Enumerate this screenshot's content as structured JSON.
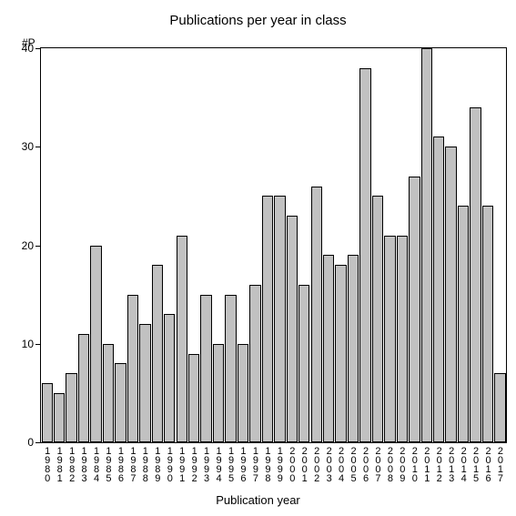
{
  "chart": {
    "type": "bar",
    "title": "Publications per year in class",
    "y_axis_label": "#P",
    "x_axis_label": "Publication year",
    "ylim": [
      0,
      40
    ],
    "yticks": [
      0,
      10,
      20,
      30,
      40
    ],
    "bar_color": "#c1c1c1",
    "bar_border_color": "#000000",
    "background_color": "#ffffff",
    "axis_color": "#000000",
    "title_fontsize": 15,
    "label_fontsize": 13,
    "tick_fontsize": 12,
    "categories": [
      "1980",
      "1981",
      "1982",
      "1983",
      "1984",
      "1985",
      "1986",
      "1987",
      "1988",
      "1989",
      "1990",
      "1991",
      "1992",
      "1993",
      "1994",
      "1995",
      "1996",
      "1997",
      "1998",
      "1999",
      "2000",
      "2001",
      "2002",
      "2003",
      "2004",
      "2005",
      "2006",
      "2007",
      "2008",
      "2009",
      "2010",
      "2011",
      "2012",
      "2013",
      "2014",
      "2015",
      "2016",
      "2017"
    ],
    "values": [
      6,
      5,
      7,
      11,
      20,
      10,
      8,
      15,
      12,
      18,
      13,
      21,
      9,
      15,
      10,
      15,
      10,
      16,
      25,
      25,
      23,
      16,
      26,
      19,
      18,
      19,
      38,
      25,
      21,
      21,
      27,
      40,
      31,
      30,
      24,
      34,
      24,
      7
    ]
  }
}
